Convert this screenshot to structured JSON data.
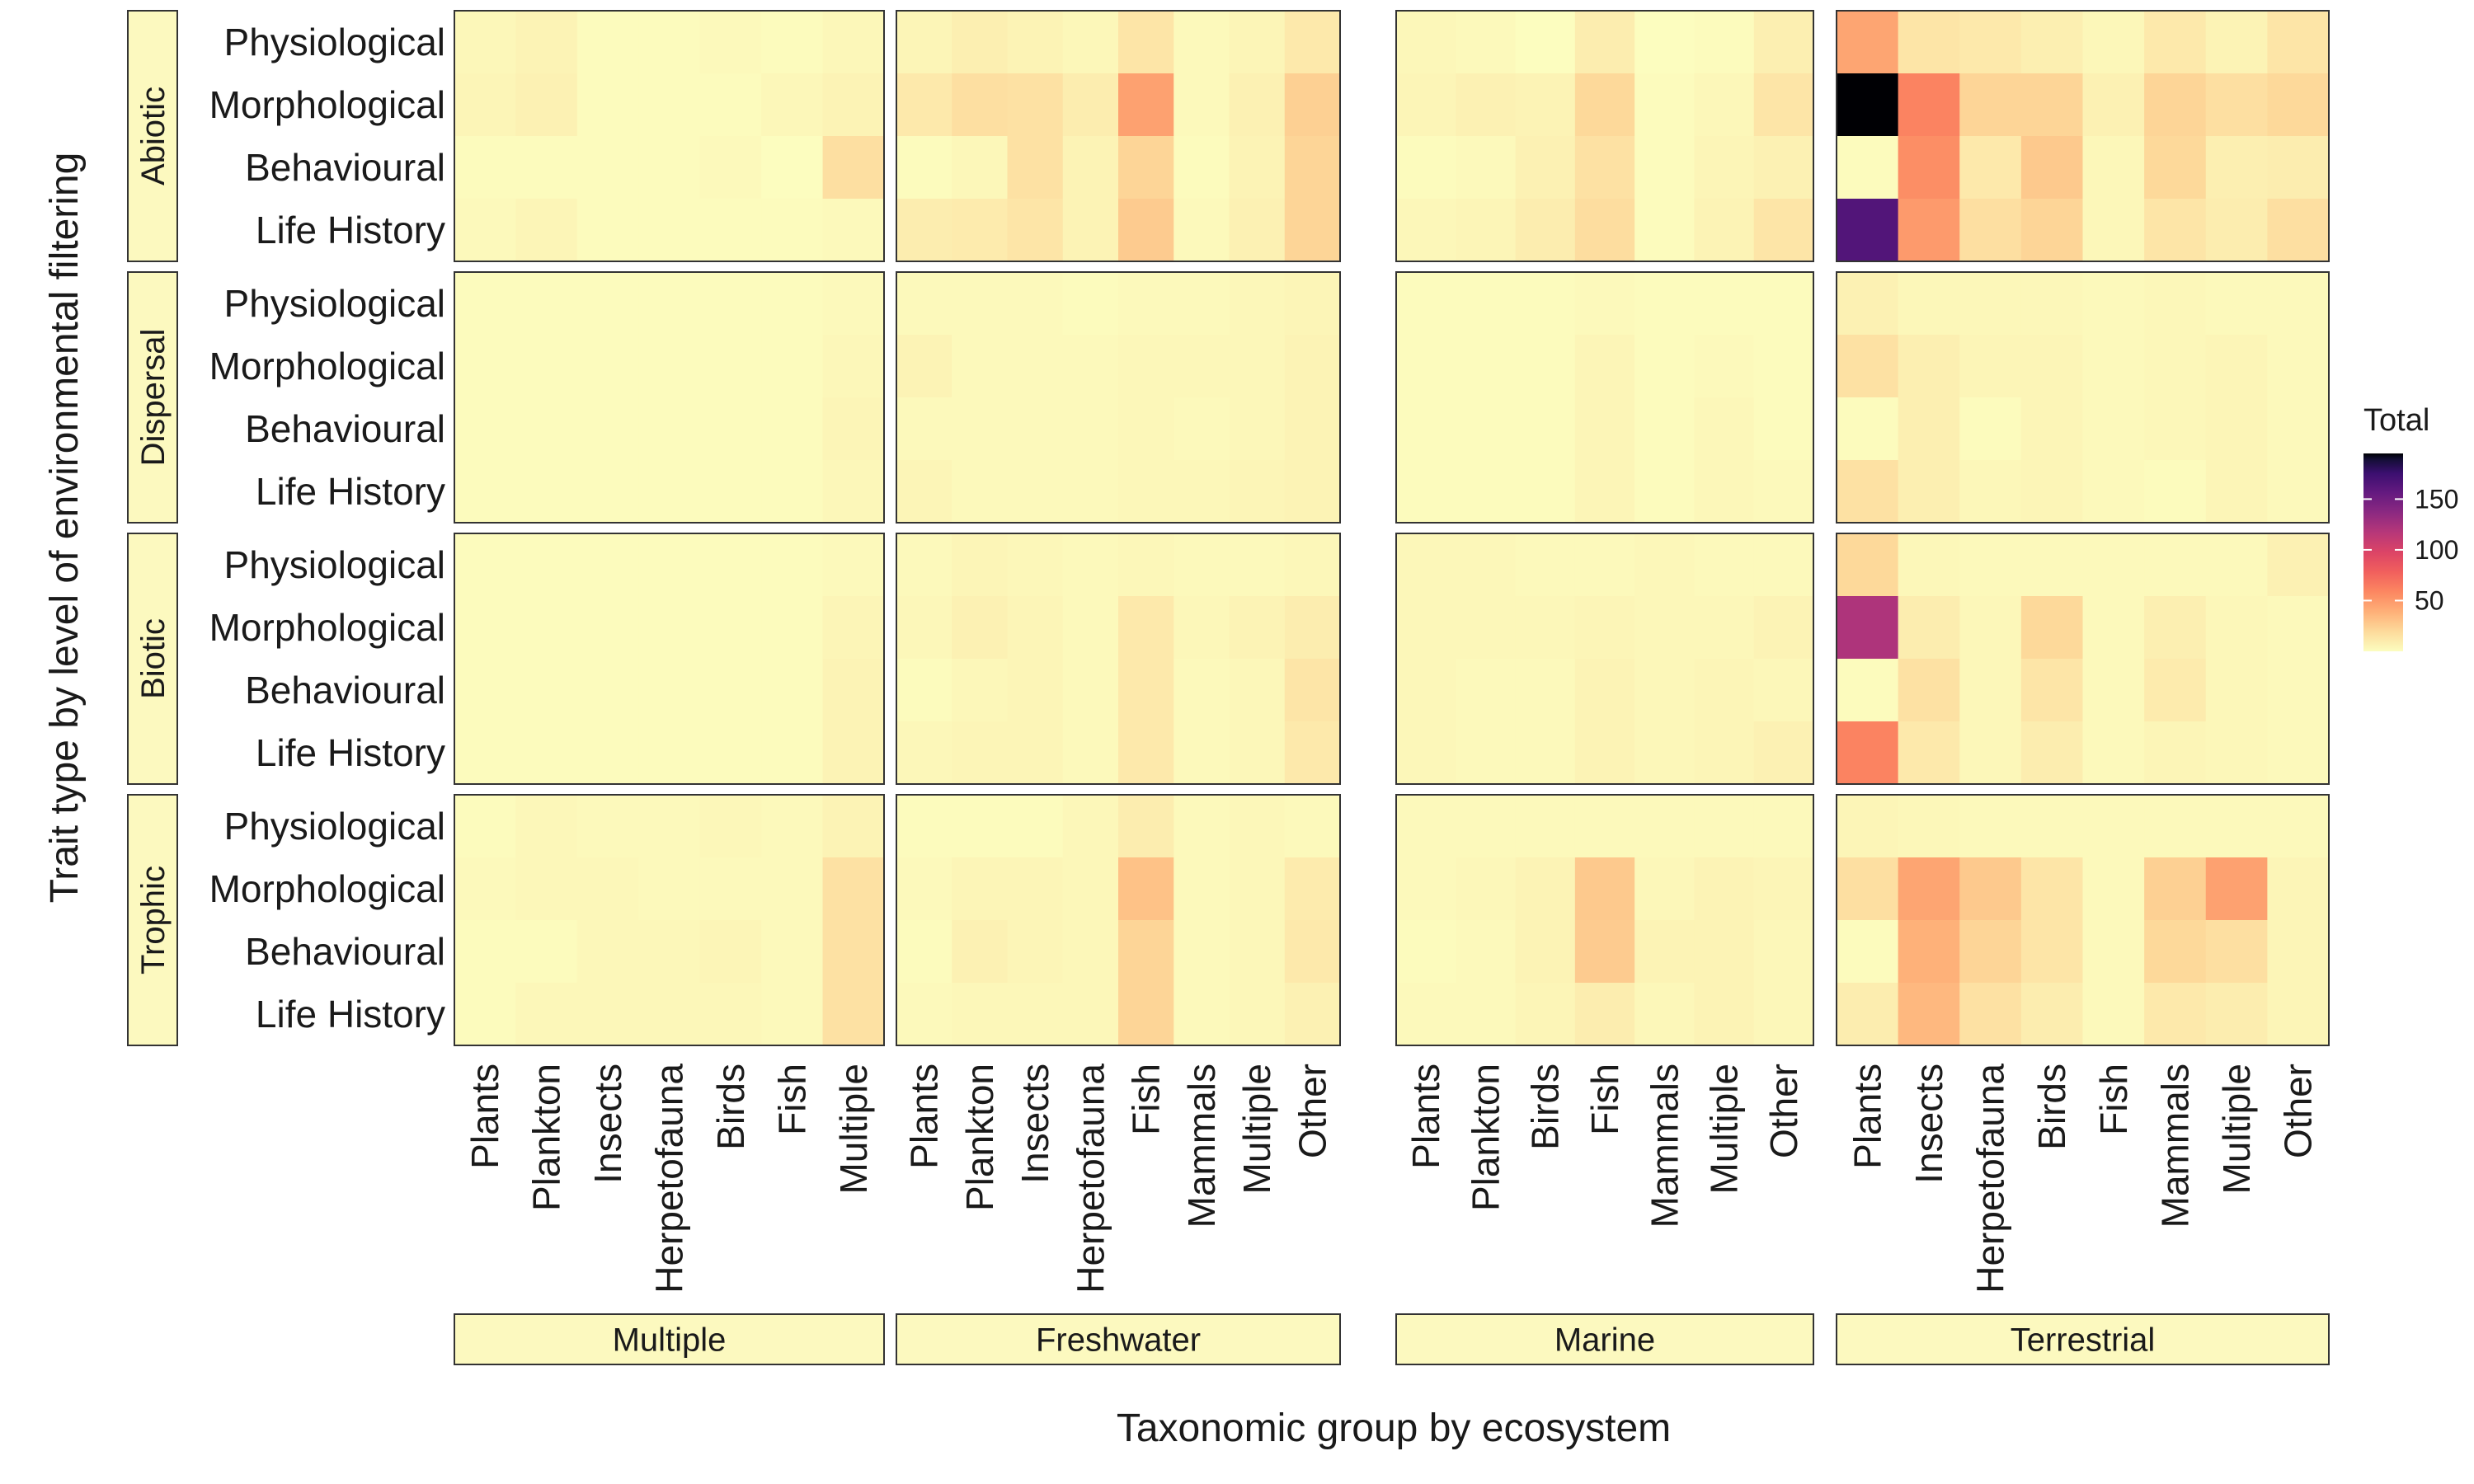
{
  "chart_data": {
    "type": "heatmap",
    "xlabel": "Taxonomic group by ecosystem",
    "ylabel": "Trait type by level of environmental filtering",
    "legend": {
      "title": "Total",
      "ticks": [
        150,
        100,
        50
      ],
      "range": [
        0,
        195
      ],
      "placement": "right"
    },
    "color_scale": [
      "#fcfdbf",
      "#fdda9b",
      "#feb078",
      "#fc8761",
      "#f1605d",
      "#dc4466",
      "#b73779",
      "#8c2981",
      "#651a80",
      "#3b0f70",
      "#140e36",
      "#000004"
    ],
    "row_facets": [
      "Abiotic",
      "Dispersal",
      "Biotic",
      "Trophic"
    ],
    "col_facets": [
      {
        "name": "Multiple",
        "groups": [
          "Plants",
          "Plankton",
          "Insects",
          "Herpetofauna",
          "Birds",
          "Fish",
          "Multiple"
        ]
      },
      {
        "name": "Freshwater",
        "groups": [
          "Plants",
          "Plankton",
          "Insects",
          "Herpetofauna",
          "Fish",
          "Mammals",
          "Multiple",
          "Other"
        ]
      },
      {
        "name": "Marine",
        "groups": [
          "Plants",
          "Plankton",
          "Birds",
          "Fish",
          "Mammals",
          "Multiple",
          "Other"
        ]
      },
      {
        "name": "Terrestrial",
        "groups": [
          "Plants",
          "Insects",
          "Herpetofauna",
          "Birds",
          "Fish",
          "Mammals",
          "Multiple",
          "Other"
        ]
      }
    ],
    "trait_types": [
      "Physiological",
      "Morphological",
      "Behavioural",
      "Life History"
    ],
    "values": {
      "Abiotic": [
        [
          [
            3,
            5,
            1,
            1,
            2,
            1,
            3
          ],
          [
            4,
            6,
            1,
            1,
            1,
            3,
            5
          ],
          [
            1,
            1,
            1,
            1,
            2,
            0,
            15
          ],
          [
            2,
            4,
            1,
            1,
            1,
            1,
            2
          ]
        ],
        [
          [
            4,
            7,
            5,
            3,
            12,
            2,
            4,
            10
          ],
          [
            10,
            15,
            14,
            8,
            42,
            2,
            6,
            22
          ],
          [
            1,
            3,
            14,
            5,
            20,
            1,
            5,
            20
          ],
          [
            8,
            9,
            12,
            5,
            24,
            2,
            6,
            20
          ]
        ],
        [
          [
            3,
            2,
            0,
            8,
            0,
            1,
            7
          ],
          [
            4,
            6,
            5,
            18,
            1,
            3,
            12
          ],
          [
            1,
            2,
            6,
            14,
            1,
            4,
            6
          ],
          [
            3,
            4,
            8,
            16,
            1,
            5,
            12
          ]
        ],
        [
          [
            40,
            12,
            10,
            7,
            3,
            10,
            5,
            12
          ],
          [
            195,
            55,
            20,
            20,
            6,
            20,
            15,
            18
          ],
          [
            1,
            50,
            10,
            25,
            3,
            18,
            7,
            8
          ],
          [
            150,
            45,
            15,
            20,
            3,
            12,
            8,
            15
          ]
        ]
      ],
      "Dispersal": [
        [
          [
            1,
            1,
            1,
            1,
            1,
            1,
            2
          ],
          [
            1,
            1,
            1,
            1,
            1,
            1,
            3
          ],
          [
            1,
            1,
            1,
            1,
            1,
            1,
            4
          ],
          [
            1,
            1,
            1,
            1,
            1,
            1,
            3
          ]
        ],
        [
          [
            2,
            2,
            2,
            1,
            2,
            2,
            3,
            4
          ],
          [
            5,
            2,
            2,
            2,
            3,
            3,
            3,
            5
          ],
          [
            2,
            2,
            2,
            2,
            3,
            2,
            3,
            5
          ],
          [
            4,
            2,
            2,
            2,
            3,
            3,
            4,
            5
          ]
        ],
        [
          [
            1,
            1,
            1,
            2,
            1,
            1,
            1
          ],
          [
            1,
            1,
            1,
            4,
            1,
            2,
            1
          ],
          [
            1,
            1,
            1,
            4,
            1,
            3,
            1
          ],
          [
            1,
            1,
            1,
            4,
            1,
            3,
            2
          ]
        ],
        [
          [
            6,
            3,
            3,
            3,
            2,
            3,
            2,
            2
          ],
          [
            14,
            7,
            4,
            4,
            2,
            3,
            4,
            2
          ],
          [
            1,
            7,
            1,
            4,
            2,
            3,
            4,
            2
          ],
          [
            14,
            7,
            3,
            4,
            2,
            1,
            4,
            2
          ]
        ]
      ],
      "Biotic": [
        [
          [
            1,
            1,
            1,
            1,
            1,
            1,
            2
          ],
          [
            1,
            1,
            1,
            1,
            1,
            1,
            4
          ],
          [
            1,
            1,
            1,
            1,
            1,
            1,
            5
          ],
          [
            1,
            1,
            1,
            1,
            1,
            1,
            5
          ]
        ],
        [
          [
            2,
            4,
            3,
            2,
            3,
            2,
            2,
            3
          ],
          [
            3,
            6,
            4,
            2,
            10,
            3,
            5,
            8
          ],
          [
            1,
            3,
            4,
            2,
            10,
            2,
            3,
            12
          ],
          [
            3,
            4,
            4,
            2,
            10,
            2,
            3,
            10
          ]
        ],
        [
          [
            3,
            3,
            2,
            2,
            3,
            2,
            2
          ],
          [
            3,
            3,
            3,
            4,
            3,
            3,
            5
          ],
          [
            3,
            2,
            2,
            5,
            3,
            4,
            3
          ],
          [
            3,
            2,
            2,
            5,
            3,
            4,
            6
          ]
        ],
        [
          [
            18,
            3,
            2,
            2,
            2,
            2,
            2,
            6
          ],
          [
            110,
            8,
            3,
            18,
            2,
            7,
            3,
            2
          ],
          [
            1,
            14,
            3,
            12,
            2,
            9,
            3,
            2
          ],
          [
            55,
            10,
            3,
            8,
            2,
            4,
            3,
            2
          ]
        ]
      ],
      "Trophic": [
        [
          [
            1,
            3,
            2,
            2,
            3,
            2,
            5
          ],
          [
            2,
            3,
            3,
            2,
            2,
            2,
            14
          ],
          [
            1,
            1,
            3,
            3,
            4,
            2,
            14
          ],
          [
            1,
            3,
            3,
            3,
            3,
            2,
            14
          ]
        ],
        [
          [
            1,
            1,
            1,
            3,
            8,
            2,
            3,
            2
          ],
          [
            2,
            4,
            4,
            3,
            28,
            2,
            3,
            9
          ],
          [
            1,
            6,
            4,
            3,
            20,
            2,
            3,
            10
          ],
          [
            2,
            3,
            3,
            3,
            20,
            2,
            3,
            6
          ]
        ],
        [
          [
            2,
            2,
            2,
            2,
            2,
            2,
            2
          ],
          [
            2,
            3,
            5,
            25,
            3,
            5,
            4
          ],
          [
            1,
            2,
            5,
            24,
            5,
            5,
            3
          ],
          [
            2,
            2,
            4,
            8,
            3,
            5,
            3
          ]
        ],
        [
          [
            4,
            3,
            2,
            2,
            2,
            2,
            2,
            2
          ],
          [
            15,
            40,
            25,
            12,
            2,
            22,
            42,
            4
          ],
          [
            1,
            35,
            20,
            12,
            2,
            18,
            15,
            4
          ],
          [
            8,
            32,
            14,
            8,
            2,
            10,
            8,
            4
          ]
        ]
      ]
    }
  }
}
